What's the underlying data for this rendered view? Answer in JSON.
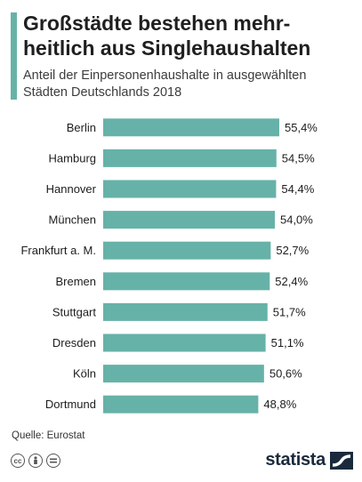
{
  "title": "Großstädte bestehen mehr-heitlich aus Singlehaushalten",
  "subtitle": "Anteil der Einpersonenhaushalte in ausgewählten Städten Deutschlands 2018",
  "source": "Quelle: Eurostat",
  "brand": "statista",
  "colors": {
    "bar": "#66b2a8",
    "accent": "#66b2a8",
    "brand": "#1a2a3c"
  },
  "license_icons": [
    "cc-icon",
    "attribution-icon",
    "no-derivatives-icon"
  ],
  "chart_data": {
    "type": "bar",
    "orientation": "horizontal",
    "categories": [
      "Berlin",
      "Hamburg",
      "Hannover",
      "München",
      "Frankfurt a. M.",
      "Bremen",
      "Stuttgart",
      "Dresden",
      "Köln",
      "Dortmund"
    ],
    "values": [
      55.4,
      54.5,
      54.4,
      54.0,
      52.7,
      52.4,
      51.7,
      51.1,
      50.6,
      48.8
    ],
    "value_labels": [
      "55,4%",
      "54,5%",
      "54,4%",
      "54,0%",
      "52,7%",
      "52,4%",
      "51,7%",
      "51,1%",
      "50,6%",
      "48,8%"
    ],
    "unit": "%",
    "xlim": [
      0,
      55.4
    ],
    "grid": false,
    "legend": "none"
  }
}
